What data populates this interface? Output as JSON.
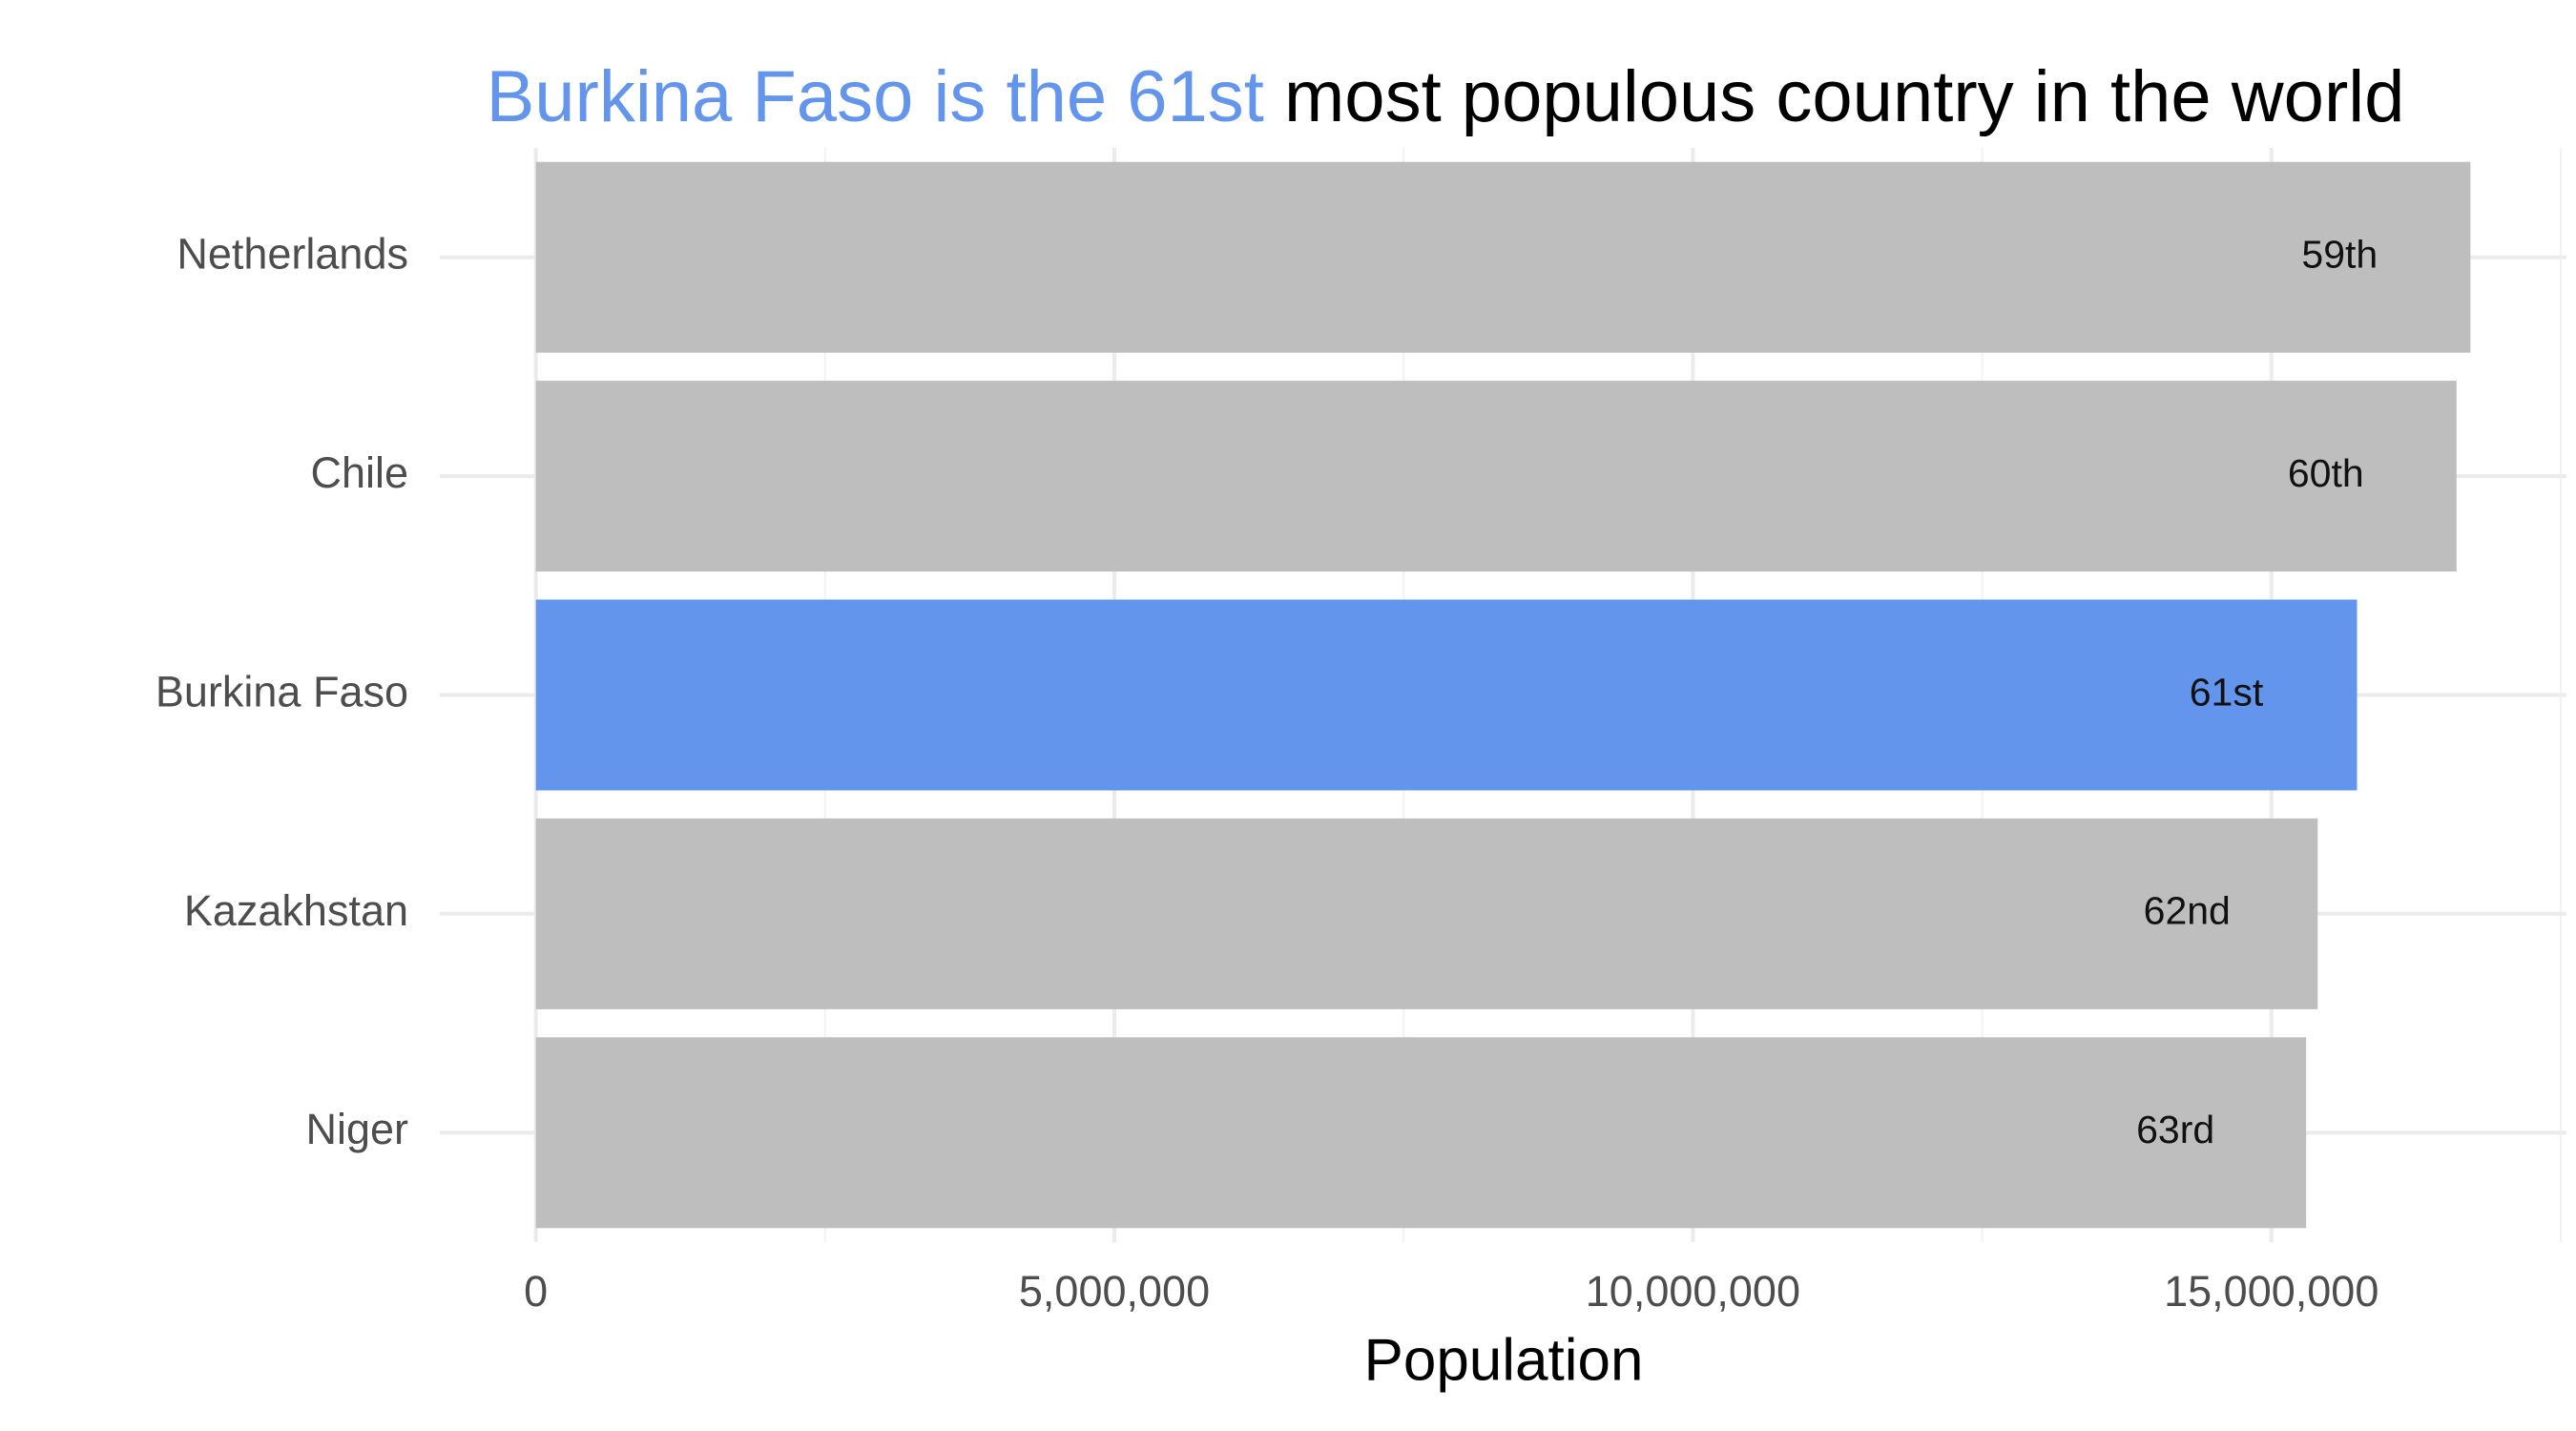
{
  "chart_data": {
    "type": "barh",
    "title_parts": [
      {
        "text": "Burkina Faso is the 61st",
        "color": "#6495ed"
      },
      {
        "text": "most populous country in the world",
        "color": "#000000"
      }
    ],
    "x_label": "Population",
    "categories": [
      "Netherlands",
      "Chile",
      "Burkina Faso",
      "Kazakhstan",
      "Niger"
    ],
    "values": [
      16720000,
      16600000,
      15740000,
      15400000,
      15300000
    ],
    "rank_labels": [
      "59th",
      "60th",
      "61st",
      "62nd",
      "63rd"
    ],
    "colors": [
      "#bebebe",
      "#bebebe",
      "#6495ed",
      "#bebebe",
      "#bebebe"
    ],
    "xlim": [
      -830000,
      17550000
    ],
    "xticks": [
      0,
      {
        "value": 5000000,
        "label": "5,000,000"
      },
      {
        "value": 10000000,
        "label": "10,000,000"
      },
      {
        "value": 15000000,
        "label": "15,000,000"
      }
    ],
    "xminor": [
      2500000,
      7500000,
      12500000,
      17500000
    ],
    "grid": true
  }
}
